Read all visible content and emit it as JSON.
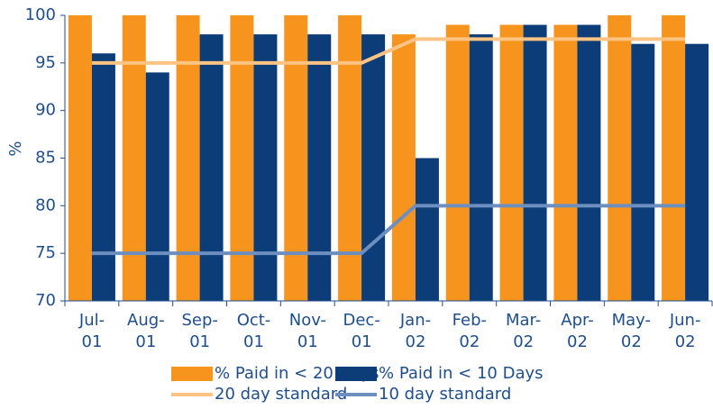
{
  "chart_data": {
    "type": "bar",
    "y_label": "%",
    "categories": [
      "Jul-\n01",
      "Aug-\n01",
      "Sep-\n01",
      "Oct-\n01",
      "Nov-\n01",
      "Dec-\n01",
      "Jan-\n02",
      "Feb-\n02",
      "Mar-\n02",
      "Apr-\n02",
      "May-\n02",
      "Jun-\n02"
    ],
    "series": [
      {
        "name": "% Paid in < 20 Days",
        "type": "bar",
        "color": "#f7941d",
        "values": [
          100,
          100,
          100,
          100,
          100,
          100,
          98,
          99,
          99,
          99,
          100,
          100
        ]
      },
      {
        "name": "% Paid in < 10 Days",
        "type": "bar",
        "color": "#0c3d78",
        "values": [
          96,
          94,
          98,
          98,
          98,
          98,
          85,
          98,
          99,
          99,
          97,
          97
        ]
      },
      {
        "name": "20 day standard",
        "type": "line",
        "color": "#fcc383",
        "values": [
          95,
          95,
          95,
          95,
          95,
          95,
          97.5,
          97.5,
          97.5,
          97.5,
          97.5,
          97.5
        ]
      },
      {
        "name": "10 day standard",
        "type": "line",
        "color": "#6d8fbf",
        "values": [
          75,
          75,
          75,
          75,
          75,
          75,
          80,
          80,
          80,
          80,
          80,
          80
        ]
      }
    ],
    "ylim": [
      70,
      100
    ],
    "yticks": [
      70,
      75,
      80,
      85,
      90,
      95,
      100
    ],
    "legend": "bottom"
  }
}
